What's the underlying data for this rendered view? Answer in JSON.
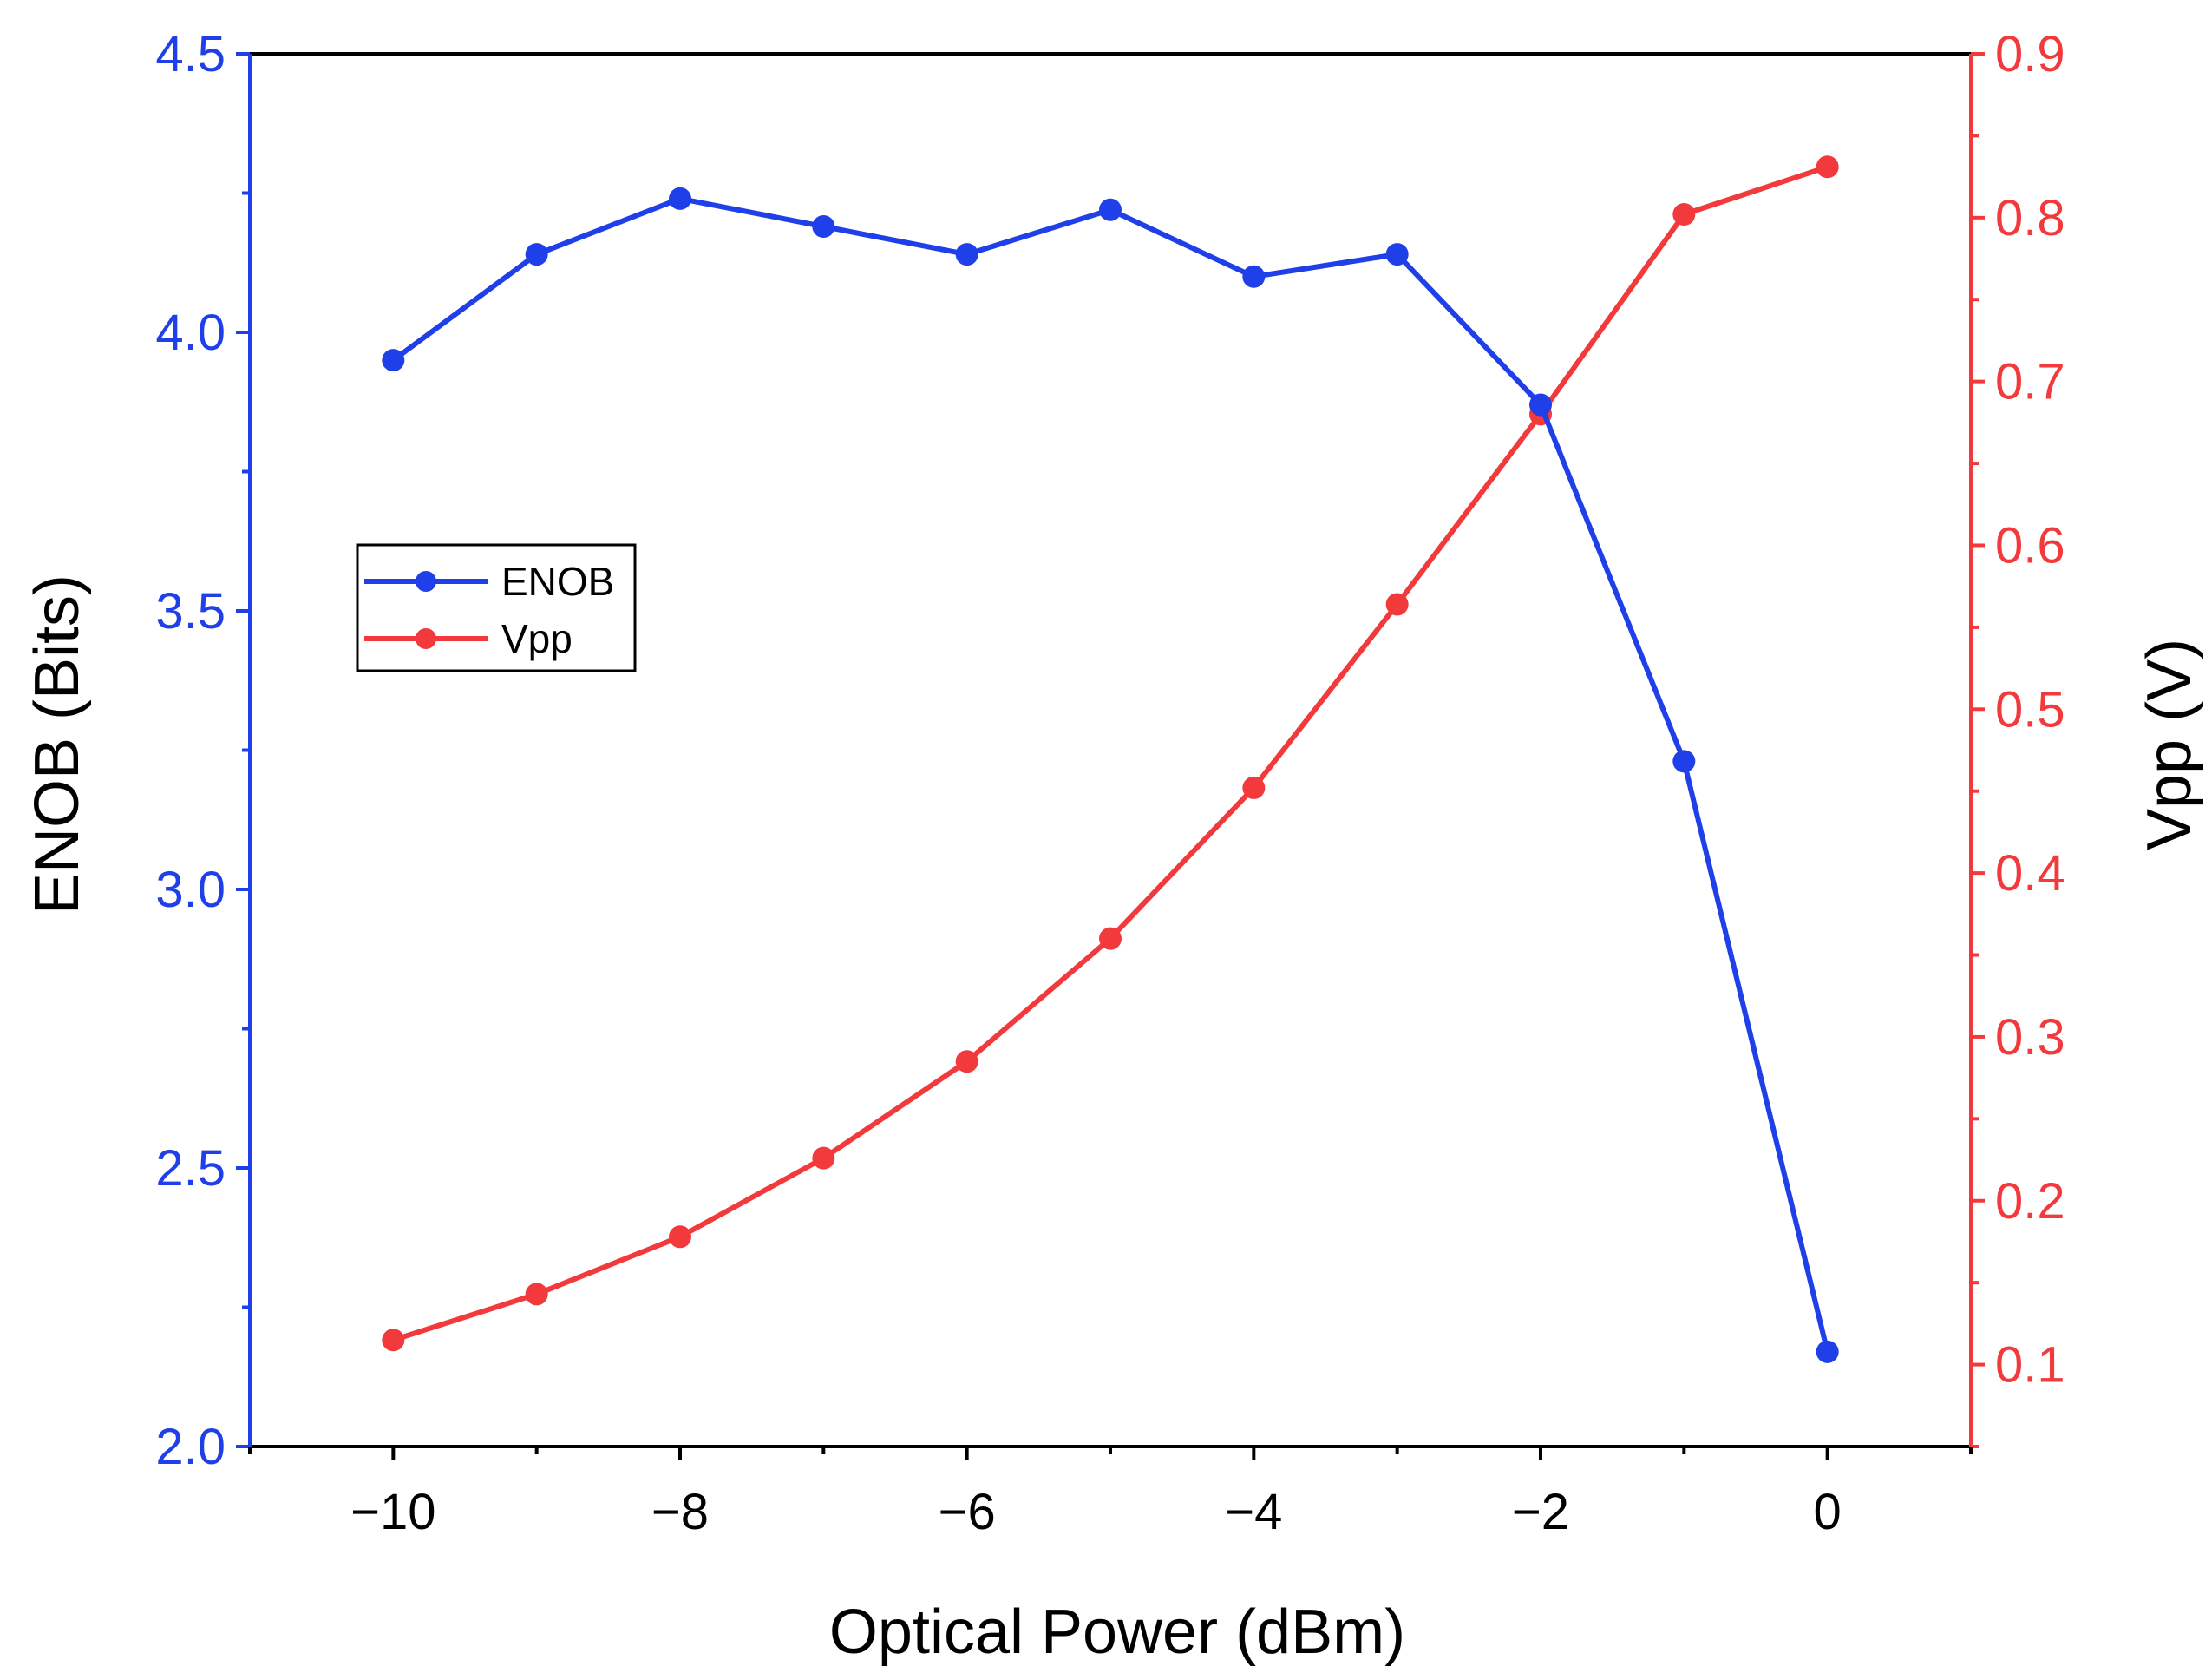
{
  "chart_data": {
    "type": "line",
    "x": [
      -10,
      -9,
      -8,
      -7,
      -6,
      -5,
      -4,
      -3,
      -2,
      -1,
      0
    ],
    "xlabel": "Optical Power (dBm)",
    "xlim": [
      -11,
      1
    ],
    "xticks": [
      -10,
      -8,
      -6,
      -4,
      -2,
      0
    ],
    "xtick_labels": [
      "−10",
      "−8",
      "−6",
      "−4",
      "−2",
      "0"
    ],
    "left_axis": {
      "label": "ENOB (Bits)",
      "ylim": [
        2.0,
        4.5
      ],
      "ticks": [
        2.0,
        2.5,
        3.0,
        3.5,
        4.0,
        4.5
      ],
      "tick_labels": [
        "2.0",
        "2.5",
        "3.0",
        "3.5",
        "4.0",
        "4.5"
      ],
      "color": "#1f3fe8"
    },
    "right_axis": {
      "label": "Vpp (V)",
      "ylim": [
        0.05,
        0.9
      ],
      "ticks": [
        0.1,
        0.2,
        0.3,
        0.4,
        0.5,
        0.6,
        0.7,
        0.8,
        0.9
      ],
      "tick_labels": [
        "0.1",
        "0.2",
        "0.3",
        "0.4",
        "0.5",
        "0.6",
        "0.7",
        "0.8",
        "0.9"
      ],
      "color": "#f2393c"
    },
    "series": [
      {
        "name": "ENOB",
        "axis": "left",
        "color": "#1f3fe8",
        "values": [
          3.95,
          4.14,
          4.24,
          4.19,
          4.14,
          4.22,
          4.1,
          4.14,
          3.87,
          3.23,
          2.17
        ]
      },
      {
        "name": "Vpp",
        "axis": "right",
        "color": "#f2393c",
        "values": [
          0.115,
          0.143,
          0.178,
          0.226,
          0.285,
          0.36,
          0.452,
          0.564,
          0.68,
          0.802,
          0.831
        ]
      }
    ],
    "legend": {
      "position": "left",
      "entries": [
        "ENOB",
        "Vpp"
      ]
    },
    "grid": false
  }
}
